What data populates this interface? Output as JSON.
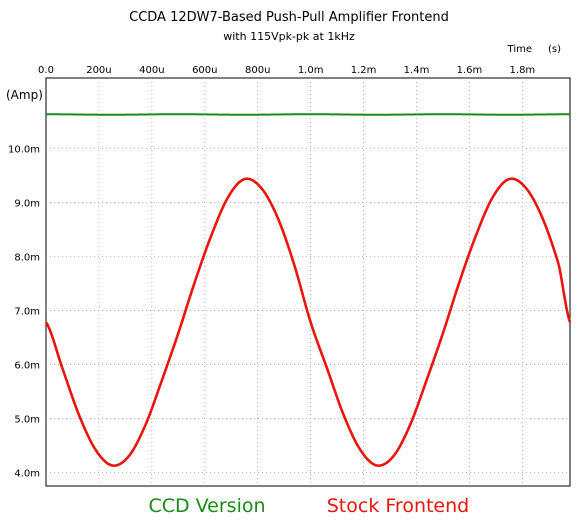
{
  "chart_data": {
    "type": "line",
    "title": "CCDA 12DW7-Based Push-Pull Amplifier Frontend",
    "subtitle": "with 115Vpk-pk at 1kHz",
    "x_unit_label": "Time",
    "x_unit_suffix": "(s)",
    "ylabel": "(Amp)",
    "xlim": [
      0,
      0.00198
    ],
    "ylim": [
      3.75,
      11.3
    ],
    "grid": true,
    "x_ticks": [
      {
        "value": 0.0,
        "label": "0.0"
      },
      {
        "value": 0.0002,
        "label": "200u"
      },
      {
        "value": 0.0004,
        "label": "400u"
      },
      {
        "value": 0.0006,
        "label": "600u"
      },
      {
        "value": 0.0008,
        "label": "800u"
      },
      {
        "value": 0.001,
        "label": "1.0m"
      },
      {
        "value": 0.0012,
        "label": "1.2m"
      },
      {
        "value": 0.0014,
        "label": "1.4m"
      },
      {
        "value": 0.0016,
        "label": "1.6m"
      },
      {
        "value": 0.0018,
        "label": "1.8m"
      }
    ],
    "y_ticks": [
      {
        "value": 4.0,
        "label": "4.0m"
      },
      {
        "value": 5.0,
        "label": "5.0m"
      },
      {
        "value": 6.0,
        "label": "6.0m"
      },
      {
        "value": 7.0,
        "label": "7.0m"
      },
      {
        "value": 8.0,
        "label": "8.0m"
      },
      {
        "value": 9.0,
        "label": "9.0m"
      },
      {
        "value": 10.0,
        "label": "10.0m"
      }
    ],
    "series": [
      {
        "name": "CCD Version",
        "color": "#1a8a1a",
        "x": [
          0.0,
          0.00025,
          0.0005,
          0.00075,
          0.001,
          0.00125,
          0.0015,
          0.00175,
          0.00198
        ],
        "y": [
          10.63,
          10.62,
          10.63,
          10.62,
          10.63,
          10.62,
          10.63,
          10.62,
          10.63
        ]
      },
      {
        "name": "Stock Frontend",
        "color": "#e8160c",
        "x": [
          0.0,
          6.25e-05,
          0.000125,
          0.0001875,
          0.00025,
          0.0003125,
          0.000375,
          0.0004375,
          0.0005,
          0.0005625,
          0.000625,
          0.0006875,
          0.00075,
          0.0008125,
          0.000875,
          0.0009375,
          0.001,
          0.0010625,
          0.001125,
          0.0011875,
          0.00125,
          0.0013125,
          0.001375,
          0.0014375,
          0.0015,
          0.0015625,
          0.001625,
          0.0016875,
          0.00175,
          0.0018125,
          0.001875,
          0.0019375,
          0.00198
        ],
        "y": [
          6.78,
          5.92,
          5.06,
          4.42,
          4.13,
          4.3,
          4.87,
          5.7,
          6.58,
          7.53,
          8.39,
          9.09,
          9.43,
          9.27,
          8.72,
          7.85,
          6.78,
          5.92,
          5.06,
          4.42,
          4.13,
          4.3,
          4.87,
          5.7,
          6.58,
          7.53,
          8.39,
          9.09,
          9.43,
          9.27,
          8.72,
          7.85,
          6.78
        ]
      }
    ],
    "legend_placement": "bottom"
  }
}
